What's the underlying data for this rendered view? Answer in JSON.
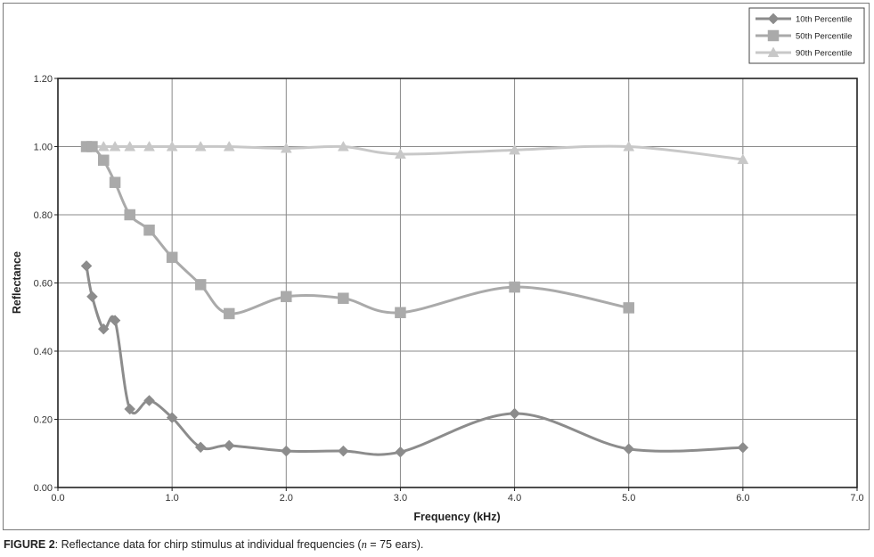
{
  "caption": {
    "label": "FIGURE 2",
    "text_before": ": Reflectance data for chirp stimulus at individual frequencies (",
    "n_symbol": "n",
    "text_after": " = 75 ears)."
  },
  "chart_data": {
    "type": "line",
    "title": "",
    "xlabel": "Frequency (kHz)",
    "ylabel": "Reflectance",
    "xlim": [
      0,
      7
    ],
    "ylim": [
      0,
      1.2
    ],
    "xticks": [
      0,
      1,
      2,
      3,
      4,
      5,
      6,
      7
    ],
    "yticks": [
      0,
      0.2,
      0.4,
      0.6,
      0.8,
      1.0,
      1.2
    ],
    "xtick_labels": [
      "0.0",
      "1.0",
      "2.0",
      "3.0",
      "4.0",
      "5.0",
      "6.0",
      "7.0"
    ],
    "ytick_labels": [
      "0.00",
      "0.20",
      "0.40",
      "0.60",
      "0.80",
      "1.00",
      "1.20"
    ],
    "grid": true,
    "legend_position": "top-right",
    "series": [
      {
        "name": "10th Percentile",
        "marker": "diamond",
        "color": "#8c8c8c",
        "x": [
          0.25,
          0.3,
          0.4,
          0.5,
          0.63,
          0.8,
          1.0,
          1.25,
          1.5,
          2.0,
          2.5,
          3.0,
          4.0,
          5.0,
          6.0
        ],
        "y": [
          0.65,
          0.56,
          0.465,
          0.49,
          0.23,
          0.255,
          0.205,
          0.118,
          0.123,
          0.107,
          0.107,
          0.104,
          0.217,
          0.113,
          0.117
        ]
      },
      {
        "name": "50th Percentile",
        "marker": "square",
        "color": "#aaaaaa",
        "x": [
          0.25,
          0.3,
          0.4,
          0.5,
          0.63,
          0.8,
          1.0,
          1.25,
          1.5,
          2.0,
          2.5,
          3.0,
          4.0,
          5.0
        ],
        "y": [
          1.0,
          1.0,
          0.96,
          0.895,
          0.8,
          0.755,
          0.675,
          0.595,
          0.51,
          0.56,
          0.555,
          0.513,
          0.588,
          0.527
        ]
      },
      {
        "name": "90th Percentile",
        "marker": "triangle",
        "color": "#c8c8c8",
        "x": [
          0.25,
          0.3,
          0.4,
          0.5,
          0.63,
          0.8,
          1.0,
          1.25,
          1.5,
          2.0,
          2.5,
          3.0,
          4.0,
          5.0,
          6.0
        ],
        "y": [
          1.0,
          1.0,
          1.0,
          1.0,
          1.0,
          1.0,
          1.0,
          1.0,
          1.0,
          0.995,
          1.0,
          0.978,
          0.99,
          1.0,
          0.962
        ]
      }
    ]
  }
}
